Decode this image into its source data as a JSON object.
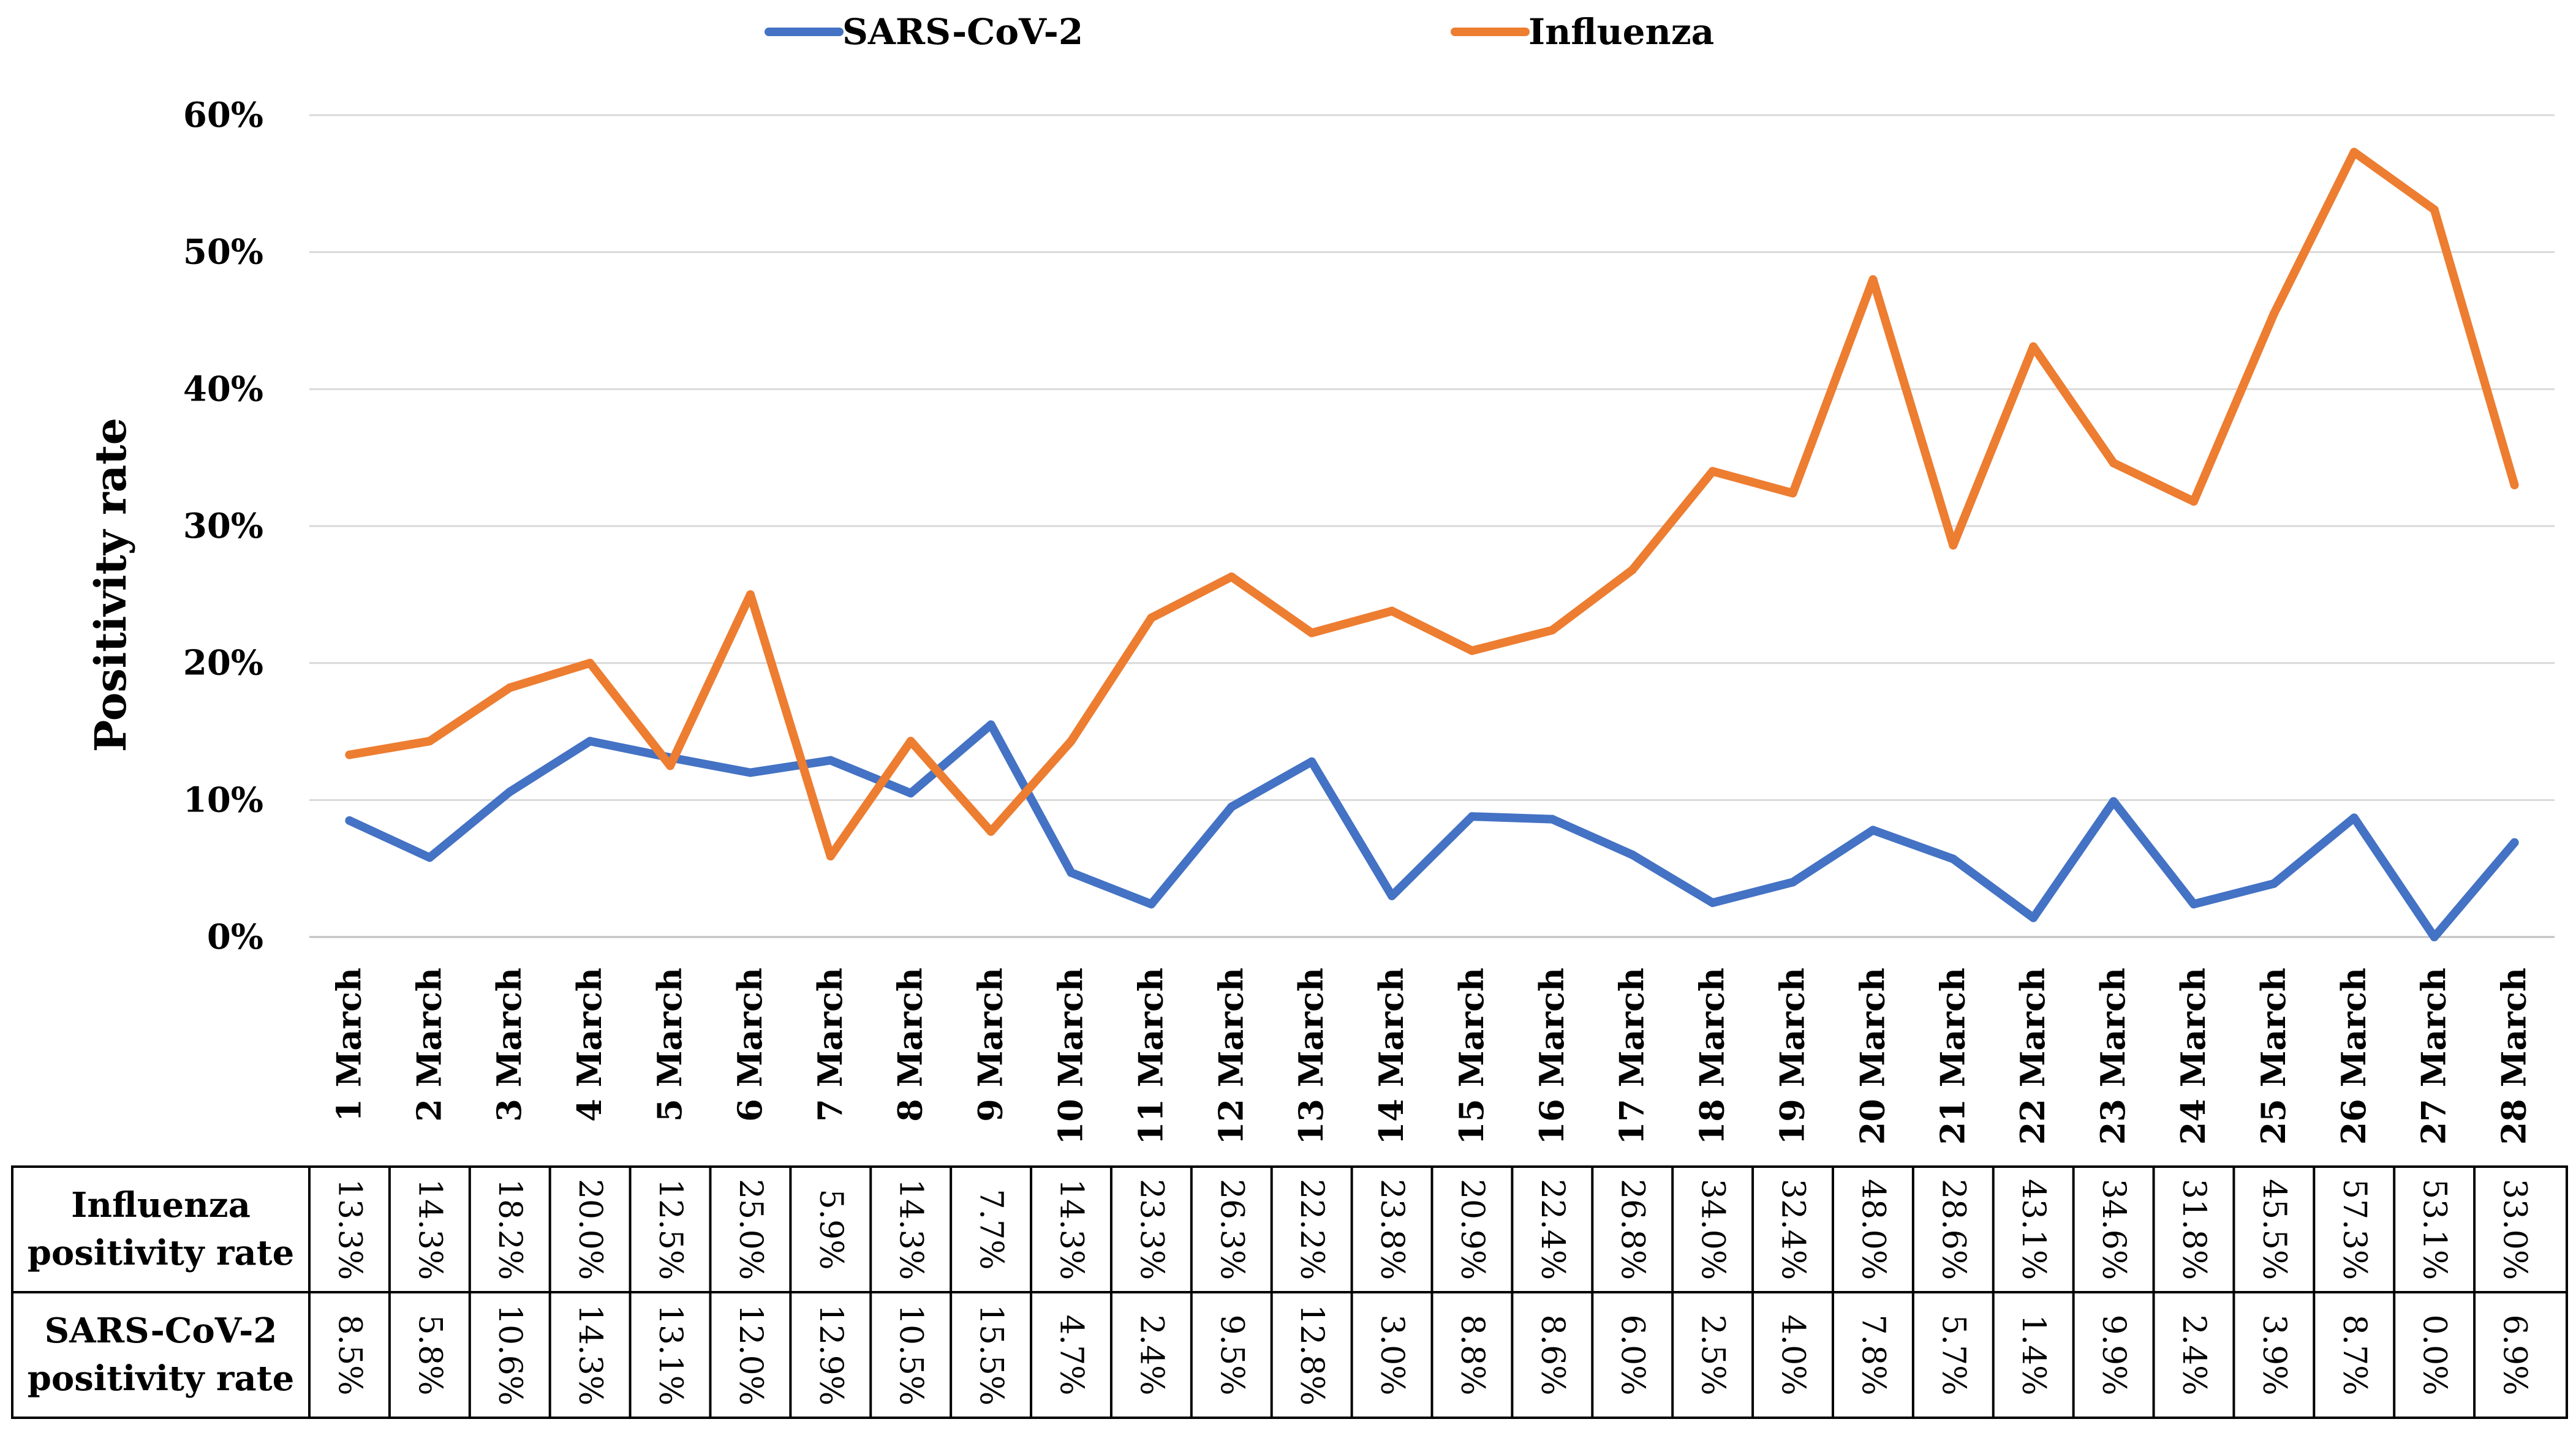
{
  "chart_data": {
    "type": "line",
    "title": "",
    "xlabel": "",
    "ylabel": "Positivity rate",
    "ylim": [
      0,
      60
    ],
    "yticks": [
      0,
      10,
      20,
      30,
      40,
      50,
      60
    ],
    "ytick_labels": [
      "0%",
      "10%",
      "20%",
      "30%",
      "40%",
      "50%",
      "60%"
    ],
    "grid": true,
    "legend_position": "top-center",
    "categories": [
      "1 March",
      "2 March",
      "3 March",
      "4 March",
      "5 March",
      "6 March",
      "7 March",
      "8 March",
      "9 March",
      "10 March",
      "11 March",
      "12 March",
      "13 March",
      "14 March",
      "15 March",
      "16 March",
      "17 March",
      "18 March",
      "19 March",
      "20 March",
      "21 March",
      "22 March",
      "23 March",
      "24 March",
      "25 March",
      "26 March",
      "27 March",
      "28 March"
    ],
    "series": [
      {
        "name": "SARS-CoV-2",
        "color": "#4472C4",
        "values": [
          8.5,
          5.8,
          10.6,
          14.3,
          13.1,
          12.0,
          12.9,
          10.5,
          15.5,
          4.7,
          2.4,
          9.5,
          12.8,
          3.0,
          8.8,
          8.6,
          6.0,
          2.5,
          4.0,
          7.8,
          5.7,
          1.4,
          9.9,
          2.4,
          3.9,
          8.7,
          0.0,
          6.9
        ]
      },
      {
        "name": "Influenza",
        "color": "#ED7D31",
        "values": [
          13.3,
          14.3,
          18.2,
          20.0,
          12.5,
          25.0,
          5.9,
          14.3,
          7.7,
          14.3,
          23.3,
          26.3,
          22.2,
          23.8,
          20.9,
          22.4,
          26.8,
          34.0,
          32.4,
          48.0,
          28.6,
          43.1,
          34.6,
          31.8,
          45.5,
          57.3,
          53.1,
          33.0
        ]
      }
    ],
    "table": {
      "rows": [
        {
          "header": [
            "Influenza",
            "positivity rate"
          ],
          "series": "Influenza",
          "cells": [
            "13.3%",
            "14.3%",
            "18.2%",
            "20.0%",
            "12.5%",
            "25.0%",
            "5.9%",
            "14.3%",
            "7.7%",
            "14.3%",
            "23.3%",
            "26.3%",
            "22.2%",
            "23.8%",
            "20.9%",
            "22.4%",
            "26.8%",
            "34.0%",
            "32.4%",
            "48.0%",
            "28.6%",
            "43.1%",
            "34.6%",
            "31.8%",
            "45.5%",
            "57.3%",
            "53.1%",
            "33.0%"
          ]
        },
        {
          "header": [
            "SARS-CoV-2",
            "positivity rate"
          ],
          "series": "SARS-CoV-2",
          "cells": [
            "8.5%",
            "5.8%",
            "10.6%",
            "14.3%",
            "13.1%",
            "12.0%",
            "12.9%",
            "10.5%",
            "15.5%",
            "4.7%",
            "2.4%",
            "9.5%",
            "12.8%",
            "3.0%",
            "8.8%",
            "8.6%",
            "6.0%",
            "2.5%",
            "4.0%",
            "7.8%",
            "5.7%",
            "1.4%",
            "9.9%",
            "2.4%",
            "3.9%",
            "8.7%",
            "0.0%",
            "6.9%"
          ]
        }
      ]
    }
  },
  "colors": {
    "grid": "#D9D9D9",
    "axis": "#BFBFBF",
    "table_border": "#000000",
    "text": "#000000"
  }
}
